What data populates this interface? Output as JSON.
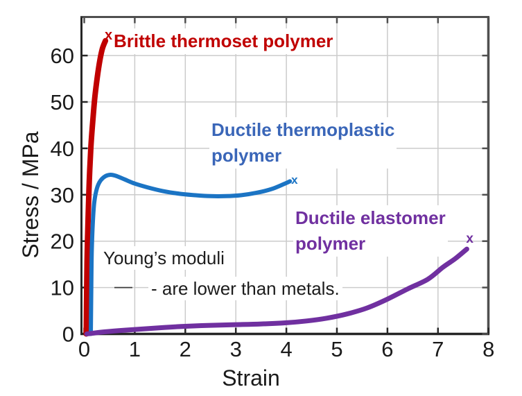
{
  "page": {
    "background": "#ffffff"
  },
  "chart_data": {
    "type": "line",
    "title": "",
    "xlabel": "Strain",
    "ylabel": "Stress / MPa",
    "xlim": [
      0,
      8
    ],
    "ylim": [
      0,
      66
    ],
    "xticks": [
      0,
      1,
      2,
      3,
      4,
      5,
      6,
      7,
      8
    ],
    "yticks": [
      0,
      10,
      20,
      30,
      40,
      50,
      60
    ],
    "grid": true,
    "legend_position": "none",
    "series": [
      {
        "name": "Brittle thermoset polymer",
        "color": "#c00000",
        "line_width": 8,
        "points": [
          [
            0.04,
            0
          ],
          [
            0.05,
            10
          ],
          [
            0.06,
            18
          ],
          [
            0.08,
            26
          ],
          [
            0.1,
            33
          ],
          [
            0.13,
            40
          ],
          [
            0.17,
            46
          ],
          [
            0.21,
            51
          ],
          [
            0.26,
            55.5
          ],
          [
            0.31,
            59
          ],
          [
            0.36,
            61.5
          ],
          [
            0.42,
            63.2
          ]
        ],
        "end_marker": {
          "strain": 0.48,
          "stress": 64.5,
          "glyph": "x",
          "size": 20
        }
      },
      {
        "name": "Ductile thermoplastic polymer",
        "color": "#1b74c4",
        "line_width": 6,
        "points": [
          [
            0.13,
            0
          ],
          [
            0.14,
            10
          ],
          [
            0.15,
            18
          ],
          [
            0.17,
            24
          ],
          [
            0.2,
            28.5
          ],
          [
            0.25,
            31.3
          ],
          [
            0.32,
            33
          ],
          [
            0.42,
            34
          ],
          [
            0.52,
            34.3
          ],
          [
            0.62,
            34.1
          ],
          [
            0.8,
            33.3
          ],
          [
            1.0,
            32.4
          ],
          [
            1.25,
            31.6
          ],
          [
            1.55,
            30.8
          ],
          [
            1.9,
            30.2
          ],
          [
            2.2,
            29.9
          ],
          [
            2.5,
            29.7
          ],
          [
            2.8,
            29.7
          ],
          [
            3.1,
            29.9
          ],
          [
            3.4,
            30.4
          ],
          [
            3.7,
            31.2
          ],
          [
            3.95,
            32.3
          ],
          [
            4.07,
            32.9
          ]
        ],
        "end_marker": {
          "strain": 4.16,
          "stress": 33.3,
          "glyph": "x",
          "size": 17
        }
      },
      {
        "name": "Ductile elastomer polymer",
        "color": "#7030a0",
        "line_width": 7,
        "points": [
          [
            0.05,
            0
          ],
          [
            0.4,
            0.45
          ],
          [
            0.8,
            0.8
          ],
          [
            1.2,
            1.1
          ],
          [
            1.6,
            1.4
          ],
          [
            2.0,
            1.65
          ],
          [
            2.5,
            1.85
          ],
          [
            3.0,
            2.0
          ],
          [
            3.5,
            2.15
          ],
          [
            4.0,
            2.4
          ],
          [
            4.4,
            2.8
          ],
          [
            4.8,
            3.4
          ],
          [
            5.2,
            4.3
          ],
          [
            5.6,
            5.6
          ],
          [
            6.0,
            7.5
          ],
          [
            6.4,
            9.7
          ],
          [
            6.8,
            11.8
          ],
          [
            7.1,
            14.4
          ],
          [
            7.35,
            16.3
          ],
          [
            7.57,
            18.3
          ]
        ],
        "end_marker": {
          "strain": 7.63,
          "stress": 20.7,
          "glyph": "x",
          "size": 19
        }
      }
    ],
    "annotations": {
      "label_brittle": "Brittle thermoset polymer",
      "label_thermoplastic_line1": "Ductile thermoplastic",
      "label_thermoplastic_line2": "polymer",
      "label_elastomer_line1": "Ductile elastomer",
      "label_elastomer_line2": "polymer",
      "note_line1": "Young’s moduli",
      "note_dash": "—",
      "note_line2": "- are lower than metals."
    },
    "colors": {
      "brittle_text": "#c00000",
      "thermoplastic_text": "#3a66b8",
      "elastomer_text": "#7030a0",
      "note_text": "#1c1c1c",
      "axis": "#262626",
      "box": "#4f4f4f",
      "grid": "#cbcbcb",
      "tick_label": "#1a1a1a"
    }
  }
}
